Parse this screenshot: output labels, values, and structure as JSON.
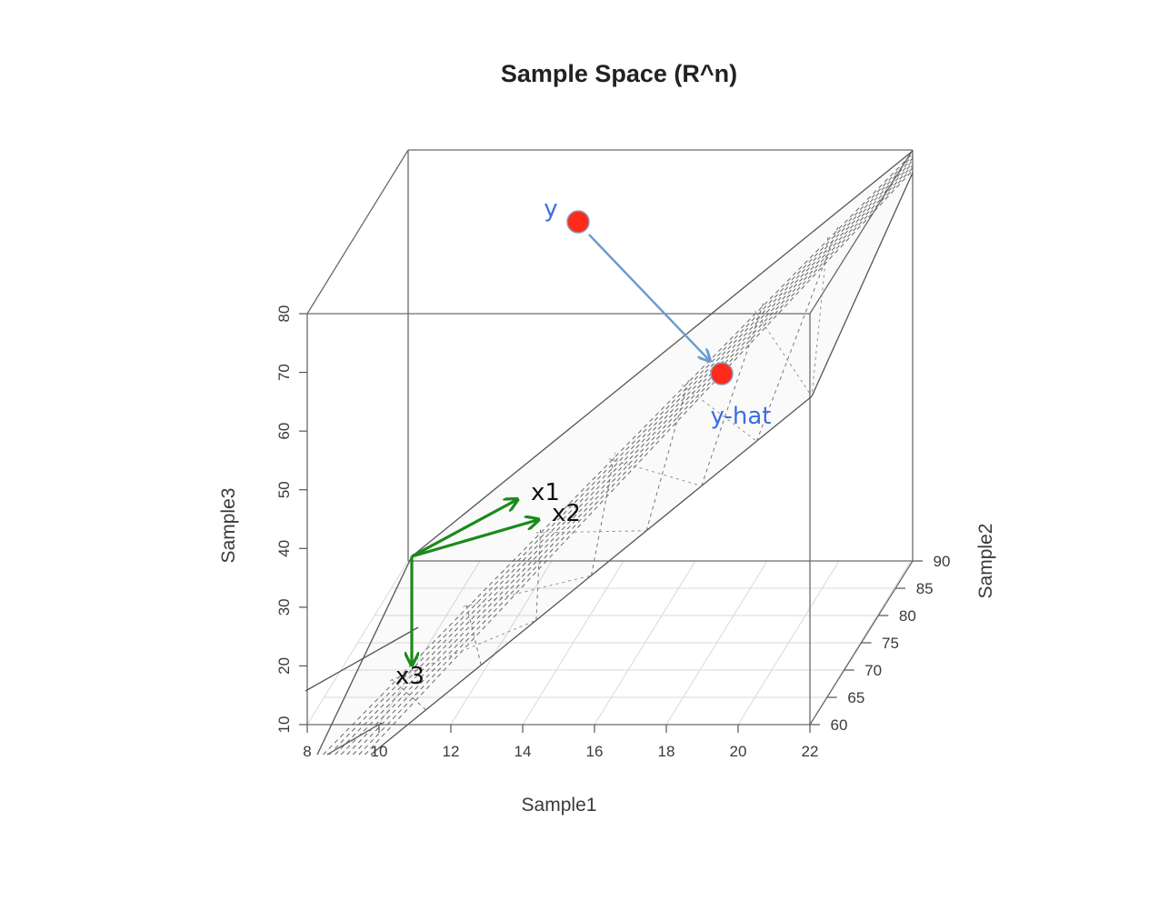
{
  "chart_data": {
    "type": "scatter",
    "title": "Sample Space (R^n)",
    "xlabel": "Sample1",
    "ylabel": "Sample3",
    "zlabel": "Sample2",
    "x_ticks": [
      "8",
      "10",
      "12",
      "14",
      "16",
      "18",
      "20",
      "22"
    ],
    "y_ticks": [
      "10",
      "20",
      "30",
      "40",
      "50",
      "60",
      "70",
      "80"
    ],
    "z_ticks": [
      "60",
      "65",
      "70",
      "75",
      "80",
      "85",
      "90"
    ],
    "xlim": [
      8,
      22
    ],
    "ylim": [
      10,
      80
    ],
    "zlim": [
      60,
      90
    ],
    "points": [
      {
        "label": "y",
        "color": "#ff2a1a"
      },
      {
        "label": "y-hat",
        "color": "#ff2a1a"
      }
    ],
    "vectors": [
      {
        "label": "x1",
        "color": "#1a8a1a"
      },
      {
        "label": "x2",
        "color": "#1a8a1a"
      },
      {
        "label": "x3",
        "color": "#1a8a1a"
      }
    ],
    "projection_arrow_color": "#6a9ccf",
    "label_colors": {
      "points": "#3b6fe0",
      "vectors": "#111111"
    },
    "grid": true
  }
}
